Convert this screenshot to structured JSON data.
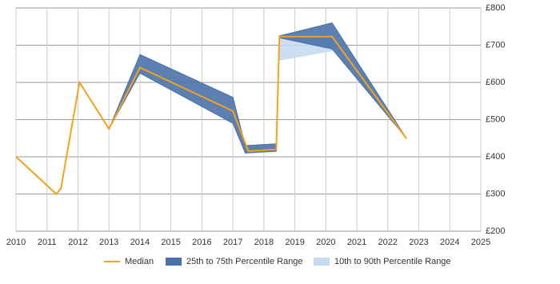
{
  "chart_data": {
    "type": "line",
    "xlim": [
      2010,
      2025
    ],
    "xticks": [
      2010,
      2011,
      2012,
      2013,
      2014,
      2015,
      2016,
      2017,
      2018,
      2019,
      2020,
      2021,
      2022,
      2023,
      2024,
      2025
    ],
    "ylim": [
      200,
      800
    ],
    "yticks": [
      {
        "value": 200,
        "label": "£200"
      },
      {
        "value": 300,
        "label": "£300"
      },
      {
        "value": 400,
        "label": "£400"
      },
      {
        "value": 500,
        "label": "£500"
      },
      {
        "value": 600,
        "label": "£600"
      },
      {
        "value": 700,
        "label": "£700"
      },
      {
        "value": 800,
        "label": "£800"
      }
    ],
    "grid": true,
    "legend": "bottom",
    "bands": [
      {
        "name": "10th to 90th Percentile Range",
        "color": "#c6dbef",
        "x": [
          2018.5,
          2020.2
        ],
        "upper": [
          725,
          725
        ],
        "lower": [
          660,
          685
        ]
      },
      {
        "name": "25th to 75th Percentile Range",
        "color": "#4a72a8",
        "x": [
          2013,
          2014,
          2017,
          2017.4,
          2018.4,
          2018.5,
          2020.2,
          2022.6
        ],
        "upper": [
          475,
          675,
          560,
          430,
          435,
          725,
          760,
          450
        ],
        "lower": [
          475,
          625,
          490,
          410,
          415,
          720,
          690,
          450
        ]
      }
    ],
    "series": [
      {
        "name": "Median",
        "color": "#f5a11c",
        "x": [
          2010,
          2011.3,
          2011.45,
          2012.05,
          2013,
          2014,
          2017,
          2017.5,
          2018.4,
          2018.5,
          2020.2,
          2022.6
        ],
        "values": [
          400,
          300,
          315,
          600,
          475,
          640,
          523,
          415,
          420,
          723,
          723,
          449
        ]
      }
    ]
  }
}
